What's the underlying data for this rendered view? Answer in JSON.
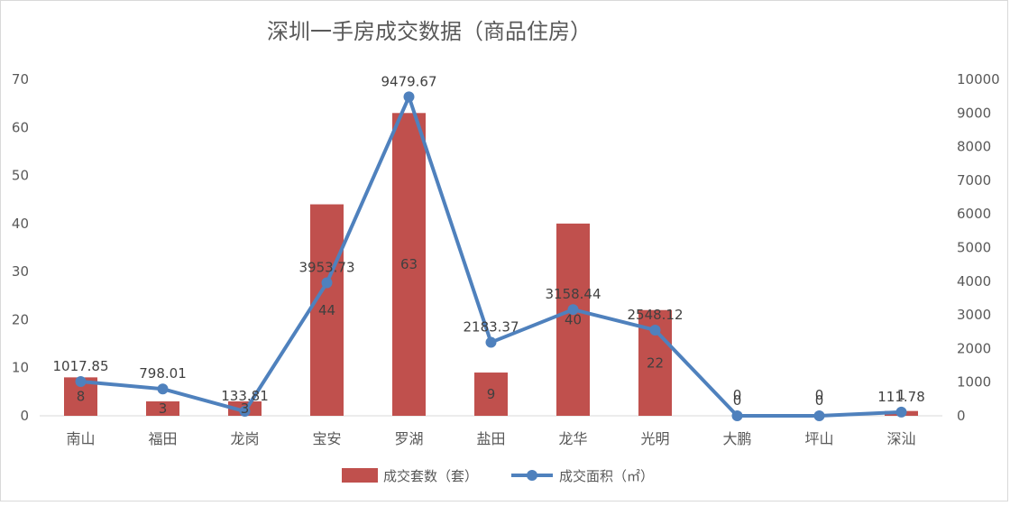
{
  "chart_data": {
    "type": "bar",
    "title": "深圳一手房成交数据（商品住房）",
    "categories": [
      "南山",
      "福田",
      "龙岗",
      "宝安",
      "罗湖",
      "盐田",
      "龙华",
      "光明",
      "大鹏",
      "坪山",
      "深汕"
    ],
    "series": [
      {
        "name": "成交套数（套）",
        "type": "bar",
        "axis": "left",
        "color": "#c0504d",
        "values": [
          8,
          3,
          3,
          44,
          63,
          9,
          40,
          22,
          0,
          0,
          1
        ],
        "labels": [
          "8",
          "3",
          "3",
          "44",
          "63",
          "9",
          "40",
          "22",
          "0",
          "0",
          "1"
        ]
      },
      {
        "name": "成交面积（㎡）",
        "type": "line",
        "axis": "right",
        "color": "#4f81bd",
        "values": [
          1017.85,
          798.01,
          133.81,
          3953.73,
          9479.67,
          2183.37,
          3158.44,
          2548.12,
          0,
          0,
          111.78
        ],
        "labels": [
          "1017.85",
          "798.01",
          "133.81",
          "3953.73",
          "9479.67",
          "2183.37",
          "3158.44",
          "2548.12",
          "0",
          "0",
          "111.78"
        ]
      }
    ],
    "y_left": {
      "min": 0,
      "max": 70,
      "ticks": [
        0,
        10,
        20,
        30,
        40,
        50,
        60,
        70
      ]
    },
    "y_right": {
      "min": 0,
      "max": 10000,
      "ticks": [
        0,
        1000,
        2000,
        3000,
        4000,
        5000,
        6000,
        7000,
        8000,
        9000,
        10000
      ]
    },
    "grid": false,
    "legend": "bottom"
  }
}
